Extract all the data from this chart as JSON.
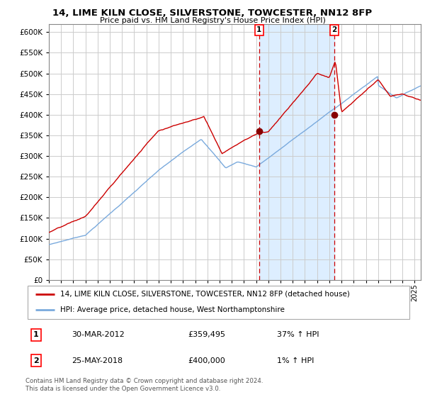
{
  "title": "14, LIME KILN CLOSE, SILVERSTONE, TOWCESTER, NN12 8FP",
  "subtitle": "Price paid vs. HM Land Registry's House Price Index (HPI)",
  "legend_line1": "14, LIME KILN CLOSE, SILVERSTONE, TOWCESTER, NN12 8FP (detached house)",
  "legend_line2": "HPI: Average price, detached house, West Northamptonshire",
  "transaction1_label": "1",
  "transaction1_date": "30-MAR-2012",
  "transaction1_price": "£359,495",
  "transaction1_hpi": "37% ↑ HPI",
  "transaction2_label": "2",
  "transaction2_date": "25-MAY-2018",
  "transaction2_price": "£400,000",
  "transaction2_hpi": "1% ↑ HPI",
  "footer": "Contains HM Land Registry data © Crown copyright and database right 2024.\nThis data is licensed under the Open Government Licence v3.0.",
  "red_line_color": "#cc0000",
  "blue_line_color": "#7aaadd",
  "fill_color": "#ddeeff",
  "marker_color": "#880000",
  "dashed_color": "#cc0000",
  "background_color": "#ffffff",
  "grid_color": "#cccccc",
  "ylim": [
    0,
    620000
  ],
  "yticks": [
    0,
    50000,
    100000,
    150000,
    200000,
    250000,
    300000,
    350000,
    400000,
    450000,
    500000,
    550000,
    600000
  ],
  "ytick_labels": [
    "£0",
    "£50K",
    "£100K",
    "£150K",
    "£200K",
    "£250K",
    "£300K",
    "£350K",
    "£400K",
    "£450K",
    "£500K",
    "£550K",
    "£600K"
  ],
  "xlim": [
    1995.0,
    2025.5
  ],
  "transaction1_x": 2012.25,
  "transaction1_y": 359495,
  "transaction2_x": 2018.42,
  "transaction2_y": 400000
}
